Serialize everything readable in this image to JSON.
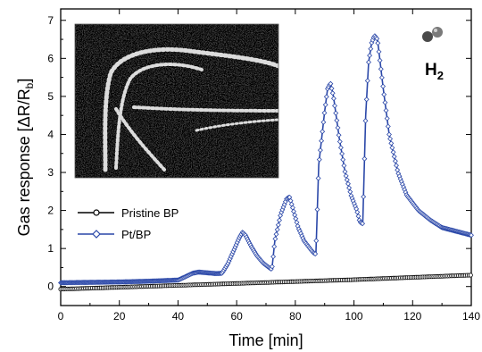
{
  "chart_data": {
    "type": "line",
    "xlabel": "Time [min]",
    "ylabel": "Gas response [ΔR/R",
    "ylabel_sub": "b",
    "ylabel_close": "]",
    "xlim": [
      0,
      140
    ],
    "ylim": [
      -0.5,
      7.3
    ],
    "x_ticks": [
      0,
      20,
      40,
      60,
      80,
      100,
      120,
      140
    ],
    "y_ticks": [
      0,
      1,
      2,
      3,
      4,
      5,
      6,
      7
    ],
    "annotation": {
      "text": "H",
      "sub": "2"
    },
    "legend_position": "left",
    "inset": "sem-micrograph",
    "series": [
      {
        "name": "Pristine BP",
        "color": "#000000",
        "marker": "circle",
        "x": [
          0,
          20,
          40,
          60,
          80,
          100,
          120,
          140
        ],
        "y": [
          -0.07,
          -0.02,
          0.03,
          0.08,
          0.13,
          0.18,
          0.24,
          0.3
        ]
      },
      {
        "name": "Pt/BP",
        "color": "#2a47a8",
        "marker": "diamond",
        "x": [
          0,
          10,
          20,
          30,
          40,
          42,
          45,
          47,
          50,
          53,
          55,
          57,
          59,
          61,
          62,
          63,
          65,
          67,
          69,
          71,
          72,
          73,
          75,
          77,
          78,
          79,
          81,
          83,
          85,
          86,
          87,
          88,
          90,
          91,
          92,
          93,
          95,
          97,
          99,
          101,
          102,
          103,
          104,
          105,
          106,
          107,
          108,
          110,
          112,
          115,
          118,
          122,
          126,
          130,
          135,
          140
        ],
        "y": [
          0.1,
          0.11,
          0.12,
          0.14,
          0.17,
          0.24,
          0.35,
          0.38,
          0.36,
          0.34,
          0.35,
          0.6,
          0.95,
          1.3,
          1.43,
          1.35,
          1.05,
          0.8,
          0.62,
          0.5,
          0.45,
          1.2,
          1.9,
          2.3,
          2.36,
          2.1,
          1.55,
          1.2,
          1.0,
          0.9,
          0.85,
          3.2,
          4.6,
          5.2,
          5.35,
          5.0,
          3.9,
          3.0,
          2.4,
          2.0,
          1.7,
          1.65,
          4.5,
          5.9,
          6.4,
          6.6,
          6.5,
          5.2,
          4.0,
          3.0,
          2.4,
          2.0,
          1.75,
          1.55,
          1.45,
          1.35
        ]
      }
    ]
  }
}
